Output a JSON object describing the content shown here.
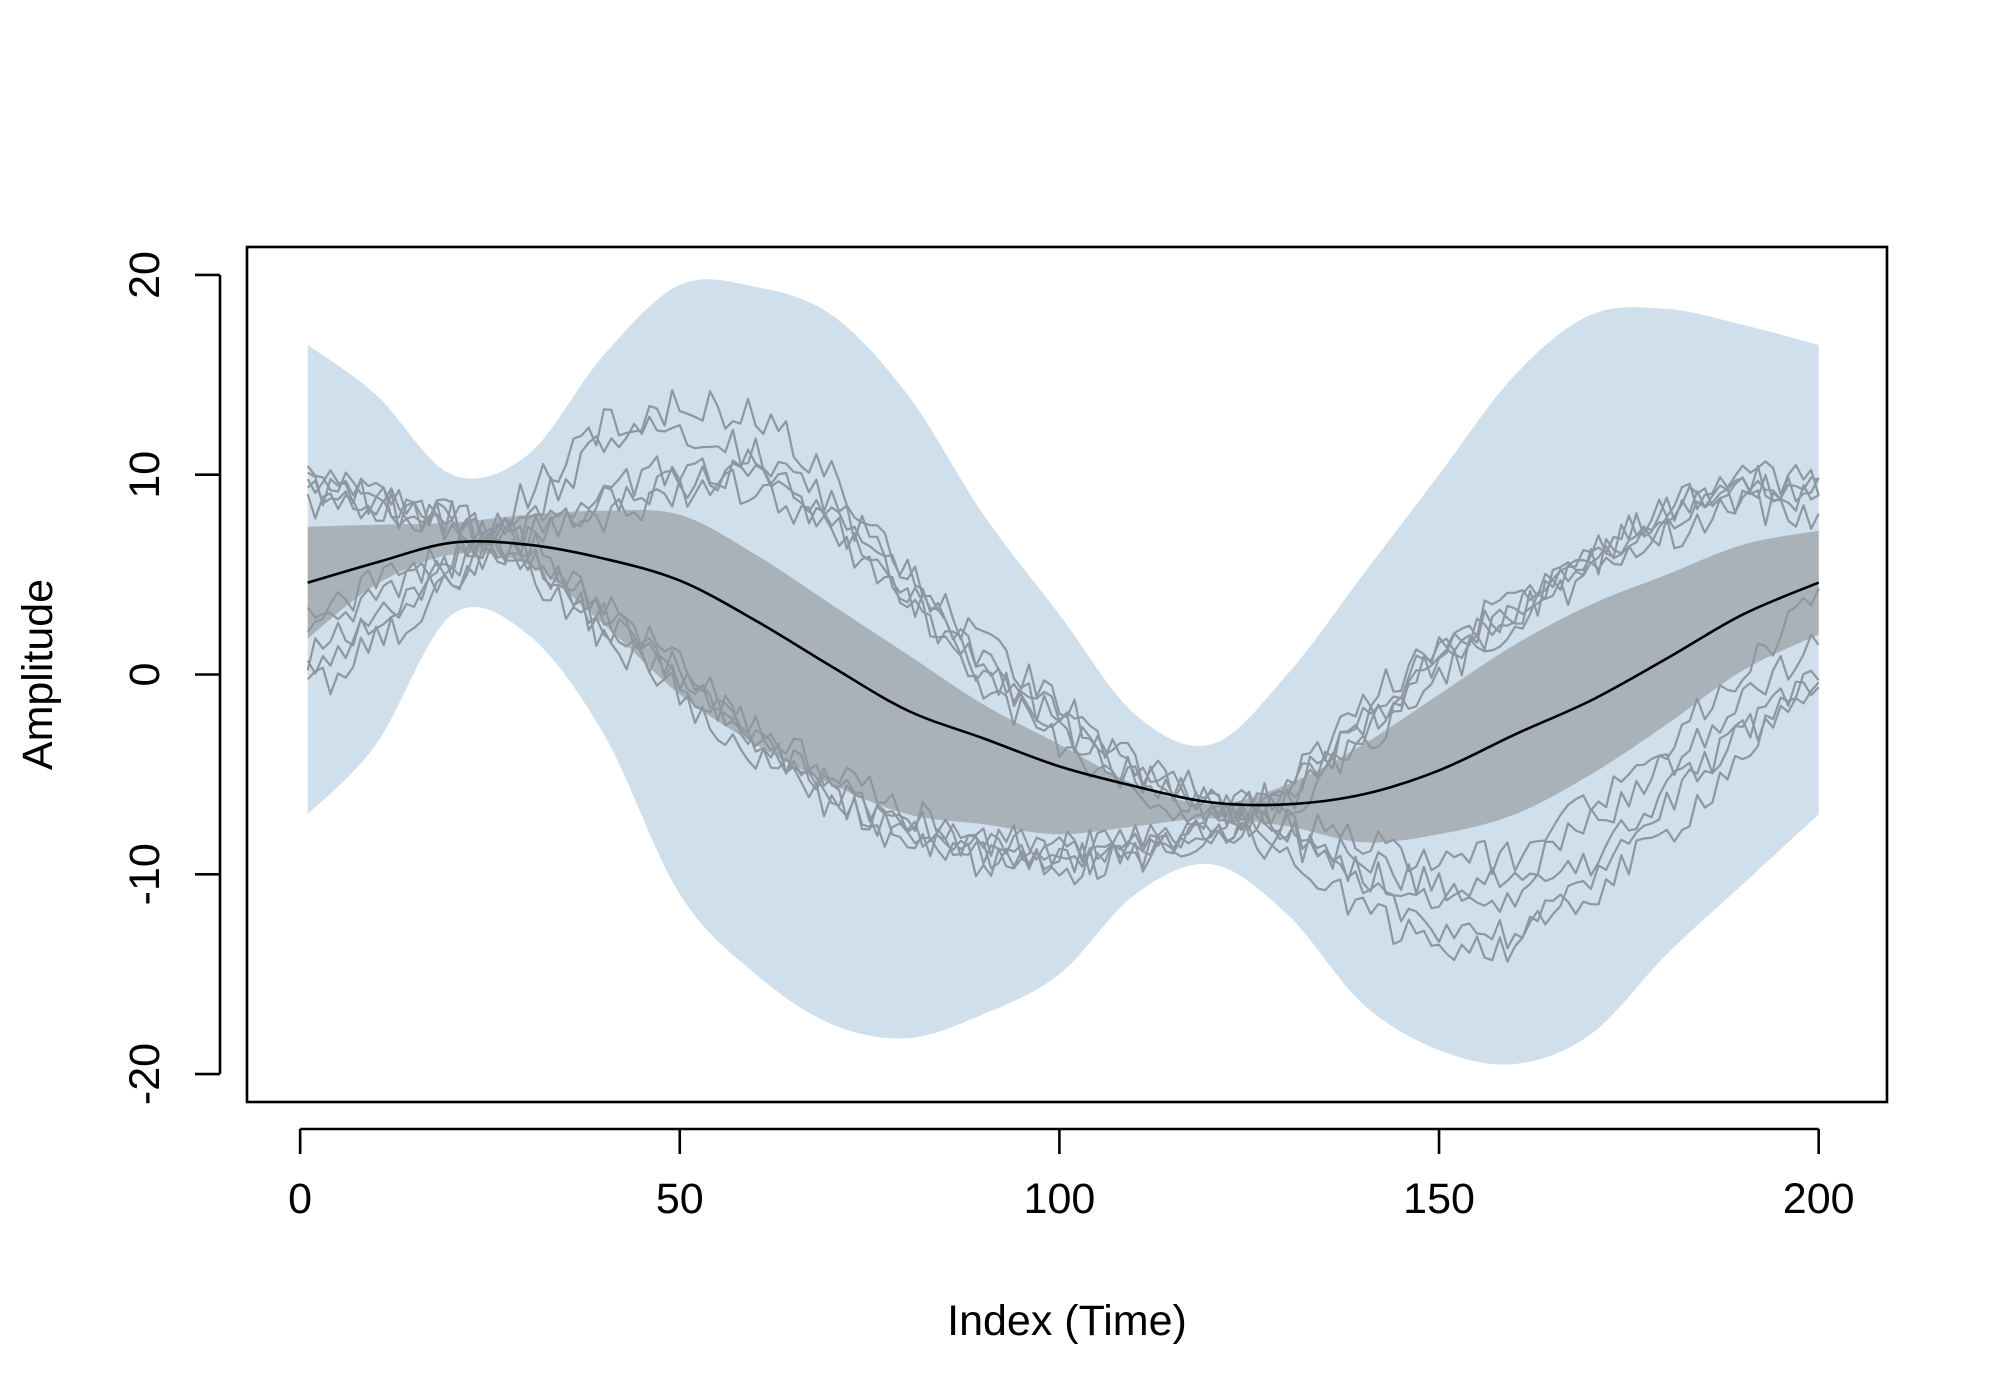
{
  "chart_data": {
    "type": "line",
    "title": "",
    "xlabel": "Index (Time)",
    "ylabel": "Amplitude",
    "xlim": [
      -7,
      209
    ],
    "ylim": [
      -21.4,
      21.4
    ],
    "x_ticks": [
      0,
      50,
      100,
      150,
      200
    ],
    "x_tick_labels": [
      "0",
      "50",
      "100",
      "150",
      "200"
    ],
    "y_ticks": [
      -20,
      -10,
      0,
      10,
      20
    ],
    "y_tick_labels": [
      "-20",
      "-10",
      "0",
      "10",
      "20"
    ],
    "grid": false,
    "legend": "none",
    "colors": {
      "outer_band": "#d0dfec",
      "inner_band": "#a9b2b9",
      "sample_lines": "#8e979f",
      "mean_line": "#000000"
    },
    "x": [
      1,
      10,
      20,
      30,
      40,
      50,
      60,
      70,
      80,
      90,
      100,
      110,
      120,
      130,
      140,
      150,
      160,
      170,
      180,
      190,
      200
    ],
    "series": [
      {
        "role": "outer_band",
        "lower": [
          -7,
          -3.5,
          3,
          2,
          -3,
          -11,
          -15,
          -17.5,
          -18.2,
          -17,
          -15,
          -11,
          -9.5,
          -12,
          -16.5,
          -18.8,
          -19.5,
          -18,
          -14,
          -10.5,
          -7
        ],
        "upper": [
          16.5,
          14,
          10,
          11,
          16,
          19.5,
          19.4,
          18,
          14,
          8,
          3,
          -2,
          -3.5,
          0,
          5,
          10,
          15,
          18,
          18.3,
          17.5,
          16.5
        ]
      },
      {
        "role": "inner_band",
        "lower": [
          1.8,
          4.5,
          6.0,
          5.5,
          2.5,
          -1.0,
          -3.5,
          -5.5,
          -7.0,
          -7.5,
          -8.0,
          -7.6,
          -7.2,
          -7.6,
          -8.4,
          -8.0,
          -7.0,
          -5.0,
          -2.5,
          0.2,
          2.0
        ],
        "upper": [
          7.4,
          7.5,
          7.6,
          8.0,
          8.2,
          8.0,
          6.0,
          3.5,
          1.0,
          -1.5,
          -3.5,
          -5.5,
          -6.5,
          -5.5,
          -3.5,
          -1.0,
          1.5,
          3.5,
          5.0,
          6.5,
          7.2
        ]
      },
      {
        "role": "mean",
        "values": [
          4.6,
          5.6,
          6.6,
          6.5,
          5.8,
          4.7,
          2.7,
          0.4,
          -1.8,
          -3.2,
          -4.6,
          -5.6,
          -6.4,
          -6.5,
          -6.0,
          -4.8,
          -3.0,
          -1.3,
          0.8,
          3.0,
          4.6
        ]
      },
      {
        "role": "sample",
        "values": [
          9.5,
          9,
          8,
          6,
          3,
          0,
          -3,
          -5.5,
          -7.5,
          -8.5,
          -8.8,
          -8.2,
          -7.5,
          -6,
          -2,
          1,
          3.5,
          6,
          8,
          9.5,
          9.5
        ]
      },
      {
        "role": "sample",
        "values": [
          9,
          8.5,
          7.5,
          5.5,
          2.5,
          -0.5,
          -3.5,
          -6,
          -8,
          -9,
          -9.5,
          -8.8,
          -8,
          -6.5,
          -3,
          0.5,
          3,
          5.5,
          7.5,
          9,
          9
        ]
      },
      {
        "role": "sample",
        "values": [
          10,
          9,
          8,
          6.5,
          3.5,
          0.5,
          -2.5,
          -5,
          -7,
          -8.2,
          -8.7,
          -8.5,
          -7.8,
          -5.5,
          -1.5,
          1.5,
          4,
          6.5,
          8.5,
          10,
          9.5
        ]
      },
      {
        "role": "sample",
        "values": [
          8.5,
          8,
          7,
          5,
          2,
          -1,
          -4,
          -6.5,
          -8.5,
          -9.3,
          -9.5,
          -9,
          -8.2,
          -6.8,
          -3.5,
          0,
          2.5,
          5,
          7,
          8.5,
          8
        ]
      },
      {
        "role": "sample",
        "values": [
          9.5,
          8.8,
          7.8,
          5.8,
          2.8,
          0,
          -3,
          -6,
          -8.2,
          -9,
          -9.8,
          -9.2,
          -7.5,
          -6,
          -2.5,
          0.8,
          3.5,
          6,
          8.2,
          9.8,
          9.2
        ]
      },
      {
        "role": "sample",
        "values": [
          0,
          2.5,
          5.5,
          9,
          12.5,
          13.5,
          13,
          10,
          5,
          0.5,
          -2.5,
          -5.5,
          -6.5,
          -8,
          -11,
          -12.5,
          -13,
          -11,
          -8,
          -4,
          0
        ]
      },
      {
        "role": "sample",
        "values": [
          -1,
          1.5,
          4.5,
          8,
          11.5,
          12.5,
          11,
          8,
          4,
          -0.5,
          -3.5,
          -6,
          -7.5,
          -9,
          -12,
          -13.5,
          -13.5,
          -10.5,
          -6.5,
          -3,
          0
        ]
      },
      {
        "role": "sample",
        "values": [
          2.5,
          4,
          5.5,
          7,
          9,
          10.5,
          10,
          7.5,
          4,
          0.5,
          -2.5,
          -5,
          -6.5,
          -7.5,
          -10,
          -11,
          -11.5,
          -9.5,
          -6,
          -3,
          0
        ]
      },
      {
        "role": "sample",
        "values": [
          3,
          4.5,
          6,
          7.5,
          8.5,
          9.5,
          10.5,
          8.5,
          5,
          1.5,
          -1.5,
          -4.5,
          -6.5,
          -8,
          -9.5,
          -10.5,
          -10,
          -7.5,
          -4.5,
          -1.5,
          2
        ]
      },
      {
        "role": "sample",
        "values": [
          1,
          3,
          5,
          7,
          8,
          9,
          9.5,
          7,
          3.5,
          0,
          -2,
          -4.5,
          -6,
          -7.5,
          -8.5,
          -9.5,
          -9,
          -6.5,
          -3.5,
          0,
          4
        ]
      }
    ]
  }
}
